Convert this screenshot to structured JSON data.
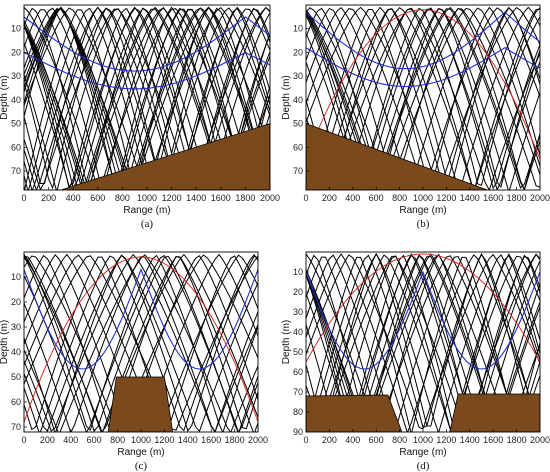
{
  "chart_data": [
    {
      "type": "line",
      "caption": "(a)",
      "xlabel": "Range (m)",
      "ylabel": "Depth (m)",
      "xlim": [
        0,
        2000
      ],
      "ylim": [
        0,
        78
      ],
      "xticks": [
        0,
        200,
        400,
        600,
        800,
        1000,
        1200,
        1400,
        1600,
        1800,
        2000
      ],
      "yticks": [
        10,
        20,
        30,
        40,
        50,
        60,
        70
      ],
      "source": {
        "x": 0,
        "depth": 10
      },
      "rays_black": {
        "spacing_m": 150,
        "curve": 3,
        "start_range": 0,
        "count": 26
      },
      "rays_blue": {
        "launch_depths": [
          5,
          20
        ],
        "span_m": 1800
      },
      "ray_red": null,
      "bottom": [
        [
          0,
          78
        ],
        [
          300,
          78
        ],
        [
          2000,
          50
        ]
      ],
      "bottom_color": "#7b4a1c"
    },
    {
      "type": "line",
      "caption": "(b)",
      "xlabel": "Range (m)",
      "ylabel": "Depth (m)",
      "xlim": [
        0,
        2000
      ],
      "ylim": [
        0,
        78
      ],
      "xticks": [
        0,
        200,
        400,
        600,
        800,
        1000,
        1200,
        1400,
        1600,
        1800,
        2000
      ],
      "yticks": [
        10,
        20,
        30,
        40,
        50,
        60,
        70
      ],
      "source": {
        "x": 2000,
        "depth": 10
      },
      "rays_black": {
        "spacing_m": 170,
        "curve": 3,
        "start_range": 0,
        "count": 20
      },
      "rays_blue": {
        "launch_depths": [
          3,
          18
        ],
        "span_m": 1700
      },
      "ray_red": {
        "peak": 2,
        "end": [
          2000,
          65
        ]
      },
      "bottom": [
        [
          0,
          50
        ],
        [
          1550,
          78
        ],
        [
          0,
          78
        ]
      ],
      "bottom_color": "#7b4a1c"
    },
    {
      "type": "line",
      "caption": "(c)",
      "xlabel": "Range (m)",
      "ylabel": "Depth (m)",
      "xlim": [
        0,
        2000
      ],
      "ylim": [
        0,
        72
      ],
      "xticks": [
        0,
        200,
        400,
        600,
        800,
        1000,
        1200,
        1400,
        1600,
        1800,
        2000
      ],
      "yticks": [
        10,
        20,
        30,
        40,
        50,
        60,
        70
      ],
      "source": {
        "x": 1000,
        "depth": 50
      },
      "rays_black": {
        "spacing_m": 190,
        "curve": 2,
        "start_range": 0,
        "count": 18
      },
      "rays_blue": {
        "launch_depths": [
          7
        ],
        "span_m": 1000
      },
      "ray_red": {
        "peak": 2,
        "end": [
          2000,
          68
        ]
      },
      "bottom": [
        [
          720,
          72
        ],
        [
          790,
          50
        ],
        [
          1200,
          50
        ],
        [
          1270,
          72
        ]
      ],
      "bottom_color": "#7b4a1c"
    },
    {
      "type": "line",
      "caption": "(d)",
      "xlabel": "Range (m)",
      "ylabel": "Depth (m)",
      "xlim": [
        0,
        2000
      ],
      "ylim": [
        0,
        90
      ],
      "xticks": [
        0,
        200,
        400,
        600,
        800,
        1000,
        1200,
        1400,
        1600,
        1800,
        2000
      ],
      "yticks": [
        10,
        20,
        30,
        40,
        50,
        60,
        70,
        80,
        90
      ],
      "source": {
        "x": 1000,
        "depth": 90
      },
      "rays_black": {
        "spacing_m": 150,
        "curve": 2,
        "start_range": 0,
        "count": 20
      },
      "rays_blue": {
        "launch_depths": [
          10
        ],
        "span_m": 1000
      },
      "ray_red": {
        "peak": 1,
        "end": [
          2000,
          55
        ]
      },
      "bottom": [
        [
          0,
          72
        ],
        [
          700,
          71.5
        ],
        [
          820,
          90
        ],
        [
          0,
          90
        ]
      ],
      "bottom2": [
        [
          1230,
          90
        ],
        [
          1300,
          71
        ],
        [
          2000,
          71
        ],
        [
          2000,
          90
        ]
      ],
      "bottom_color": "#7b4a1c"
    }
  ]
}
